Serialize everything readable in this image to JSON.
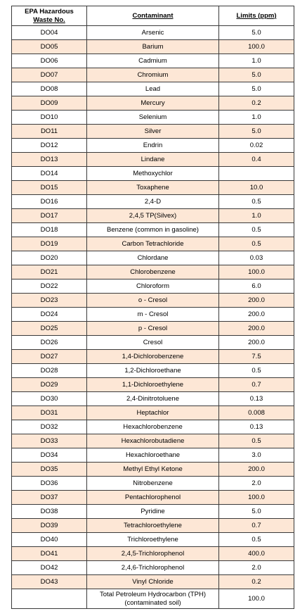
{
  "table": {
    "headers": {
      "waste_no_line1": "EPA Hazardous",
      "waste_no_line2": "Waste No.",
      "contaminant": "Contaminant",
      "limits": "Limits (ppm)"
    },
    "rows": [
      {
        "no": "DO04",
        "name": "Arsenic",
        "limit": "5.0"
      },
      {
        "no": "DO05",
        "name": "Barium",
        "limit": "100.0"
      },
      {
        "no": "DO06",
        "name": "Cadmium",
        "limit": "1.0"
      },
      {
        "no": "DO07",
        "name": "Chromium",
        "limit": "5.0"
      },
      {
        "no": "DO08",
        "name": "Lead",
        "limit": "5.0"
      },
      {
        "no": "DO09",
        "name": "Mercury",
        "limit": "0.2"
      },
      {
        "no": "DO10",
        "name": "Selenium",
        "limit": "1.0"
      },
      {
        "no": "DO11",
        "name": "Silver",
        "limit": "5.0"
      },
      {
        "no": "DO12",
        "name": "Endrin",
        "limit": "0.02"
      },
      {
        "no": "DO13",
        "name": "Lindane",
        "limit": "0.4"
      },
      {
        "no": "DO14",
        "name": "Methoxychlor",
        "limit": ""
      },
      {
        "no": "DO15",
        "name": "Toxaphene",
        "limit": "10.0"
      },
      {
        "no": "DO16",
        "name": "2,4-D",
        "limit": "0.5"
      },
      {
        "no": "DO17",
        "name": "2,4,5 TP(Silvex)",
        "limit": "1.0"
      },
      {
        "no": "DO18",
        "name": "Benzene (common in gasoline)",
        "limit": "0.5"
      },
      {
        "no": "DO19",
        "name": "Carbon Tetrachloride",
        "limit": "0.5"
      },
      {
        "no": "DO20",
        "name": "Chlordane",
        "limit": "0.03"
      },
      {
        "no": "DO21",
        "name": "Chlorobenzene",
        "limit": "100.0"
      },
      {
        "no": "DO22",
        "name": "Chloroform",
        "limit": "6.0"
      },
      {
        "no": "DO23",
        "name": "o - Cresol",
        "limit": "200.0"
      },
      {
        "no": "DO24",
        "name": "m - Cresol",
        "limit": "200.0"
      },
      {
        "no": "DO25",
        "name": "p - Cresol",
        "limit": "200.0"
      },
      {
        "no": "DO26",
        "name": "Cresol",
        "limit": "200.0"
      },
      {
        "no": "DO27",
        "name": "1,4-Dichlorobenzene",
        "limit": "7.5"
      },
      {
        "no": "DO28",
        "name": "1,2-Dichloroethane",
        "limit": "0.5"
      },
      {
        "no": "DO29",
        "name": "1,1-Dichloroethylene",
        "limit": "0.7"
      },
      {
        "no": "DO30",
        "name": "2,4-Dinitrotoluene",
        "limit": "0.13"
      },
      {
        "no": "DO31",
        "name": "Heptachlor",
        "limit": "0.008"
      },
      {
        "no": "DO32",
        "name": "Hexachlorobenzene",
        "limit": "0.13"
      },
      {
        "no": "DO33",
        "name": "Hexachlorobutadiene",
        "limit": "0.5"
      },
      {
        "no": "DO34",
        "name": "Hexachloroethane",
        "limit": "3.0"
      },
      {
        "no": "DO35",
        "name": "Methyl Ethyl Ketone",
        "limit": "200.0"
      },
      {
        "no": "DO36",
        "name": "Nitrobenzene",
        "limit": "2.0"
      },
      {
        "no": "DO37",
        "name": "Pentachlorophenol",
        "limit": "100.0"
      },
      {
        "no": "DO38",
        "name": "Pyridine",
        "limit": "5.0"
      },
      {
        "no": "DO39",
        "name": "Tetrachloroethylene",
        "limit": "0.7"
      },
      {
        "no": "DO40",
        "name": "Trichloroethylene",
        "limit": "0.5"
      },
      {
        "no": "DO41",
        "name": "2,4,5-Trichlorophenol",
        "limit": "400.0"
      },
      {
        "no": "DO42",
        "name": "2,4,6-Trichlorophenol",
        "limit": "2.0"
      },
      {
        "no": "DO43",
        "name": "Vinyl Chloride",
        "limit": "0.2"
      }
    ],
    "last_row": {
      "no": "",
      "name_line1": "Total Petroleum Hydrocarbon (TPH)",
      "name_line2": "(contaminated soil)",
      "limit": "100.0"
    }
  },
  "colors": {
    "shade": "#fde7d6",
    "border": "#3a3a3a"
  }
}
